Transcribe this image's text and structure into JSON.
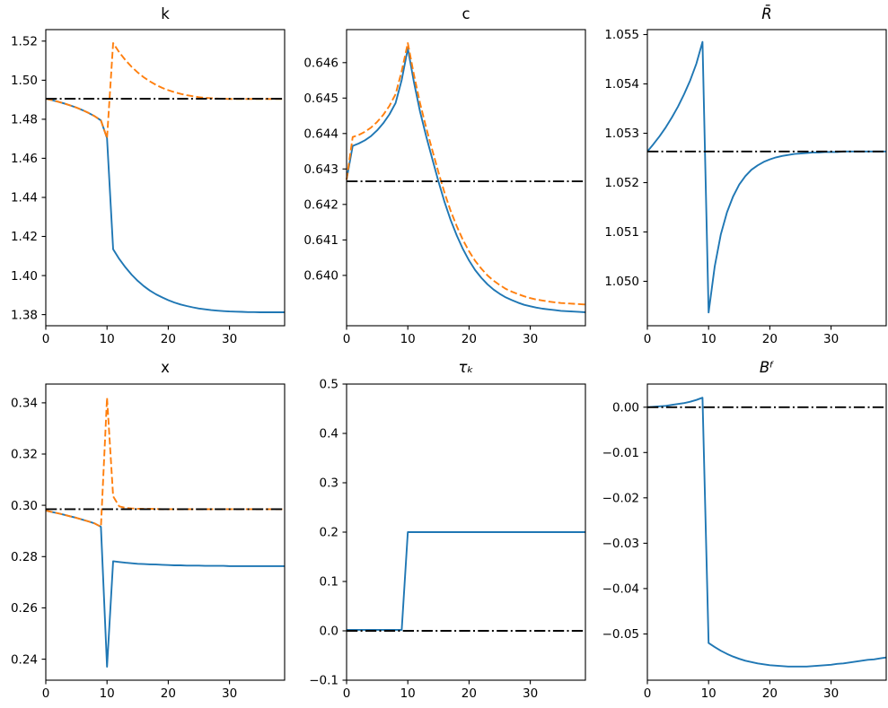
{
  "figure": {
    "background": "#ffffff",
    "grid": "2 rows x 3 columns",
    "legend": null
  },
  "chart_data": {
    "type": "line",
    "x": [
      0,
      1,
      2,
      3,
      4,
      5,
      6,
      7,
      8,
      9,
      10,
      11,
      12,
      13,
      14,
      15,
      16,
      17,
      18,
      19,
      20,
      21,
      22,
      23,
      24,
      25,
      26,
      27,
      28,
      29,
      30,
      31,
      32,
      33,
      34,
      35,
      36,
      37,
      38,
      39
    ],
    "xlim": [
      0,
      39
    ],
    "xticks": {
      "values": [
        0,
        10,
        20,
        30
      ],
      "labels": [
        "0",
        "10",
        "20",
        "30"
      ]
    },
    "colors": {
      "line1": "#1f77b4",
      "line2": "#ff7f0e",
      "steady_state": "#000000"
    },
    "subplots": [
      {
        "title": "k",
        "title_style": "normal",
        "ylim": [
          1.3743,
          1.5259
        ],
        "yticks": {
          "values": [
            1.38,
            1.4,
            1.42,
            1.44,
            1.46,
            1.48,
            1.5,
            1.52
          ],
          "labels": [
            "1.38",
            "1.40",
            "1.42",
            "1.44",
            "1.46",
            "1.48",
            "1.50",
            "1.52"
          ]
        },
        "hline": 1.4905,
        "series": [
          {
            "name": "blue-solid",
            "color": "#1f77b4",
            "style": "solid",
            "y": [
              1.4905,
              1.4898,
              1.489,
              1.4881,
              1.4871,
              1.486,
              1.4847,
              1.4832,
              1.4815,
              1.4794,
              1.4703,
              1.4135,
              1.4085,
              1.4042,
              1.4005,
              1.3973,
              1.3946,
              1.3923,
              1.3904,
              1.3888,
              1.3874,
              1.3862,
              1.3852,
              1.3844,
              1.3837,
              1.3831,
              1.3827,
              1.3823,
              1.382,
              1.3818,
              1.3816,
              1.3815,
              1.3814,
              1.3813,
              1.3813,
              1.3812,
              1.3812,
              1.3812,
              1.3812,
              1.3812
            ]
          },
          {
            "name": "orange-dashed",
            "color": "#ff7f0e",
            "style": "dashed",
            "y": [
              1.4905,
              1.4898,
              1.489,
              1.4881,
              1.4871,
              1.486,
              1.4847,
              1.4832,
              1.4815,
              1.4794,
              1.4703,
              1.519,
              1.5143,
              1.5103,
              1.5069,
              1.504,
              1.5015,
              1.4994,
              1.4976,
              1.4961,
              1.4949,
              1.4939,
              1.493,
              1.4923,
              1.4918,
              1.4913,
              1.491,
              1.4908,
              1.4906,
              1.4905,
              1.4904,
              1.4904,
              1.4904,
              1.4904,
              1.4904,
              1.4904,
              1.4904,
              1.4904,
              1.4904,
              1.4904
            ]
          }
        ]
      },
      {
        "title": "c",
        "title_style": "normal",
        "ylim": [
          0.63858,
          0.64693
        ],
        "yticks": {
          "values": [
            0.64,
            0.641,
            0.642,
            0.643,
            0.644,
            0.645,
            0.646
          ],
          "labels": [
            "0.640",
            "0.641",
            "0.642",
            "0.643",
            "0.644",
            "0.645",
            "0.646"
          ]
        },
        "hline": 0.64265,
        "series": [
          {
            "name": "blue-solid",
            "color": "#1f77b4",
            "style": "solid",
            "y": [
              0.6427,
              0.64365,
              0.64372,
              0.64381,
              0.64393,
              0.64409,
              0.64429,
              0.64454,
              0.64486,
              0.64551,
              0.6464,
              0.64545,
              0.64462,
              0.64392,
              0.64328,
              0.64265,
              0.64207,
              0.64156,
              0.64112,
              0.64074,
              0.64042,
              0.64015,
              0.63993,
              0.63975,
              0.6396,
              0.63948,
              0.63938,
              0.6393,
              0.63923,
              0.63917,
              0.63913,
              0.63909,
              0.63906,
              0.63904,
              0.63902,
              0.639,
              0.63899,
              0.63898,
              0.63897,
              0.63896
            ]
          },
          {
            "name": "orange-dashed",
            "color": "#ff7f0e",
            "style": "dashed",
            "y": [
              0.6427,
              0.6439,
              0.64396,
              0.64405,
              0.64417,
              0.64433,
              0.64453,
              0.64478,
              0.64511,
              0.64576,
              0.64655,
              0.64566,
              0.64486,
              0.64416,
              0.64353,
              0.64291,
              0.64233,
              0.64182,
              0.64138,
              0.641,
              0.64068,
              0.64041,
              0.64019,
              0.64,
              0.63985,
              0.63973,
              0.63962,
              0.63954,
              0.63947,
              0.63941,
              0.63936,
              0.63932,
              0.63929,
              0.63926,
              0.63924,
              0.63922,
              0.63921,
              0.6392,
              0.63919,
              0.63918
            ]
          }
        ]
      },
      {
        "title": "R̄",
        "title_style": "italic",
        "ylim": [
          1.0491,
          1.0551
        ],
        "yticks": {
          "values": [
            1.05,
            1.051,
            1.052,
            1.053,
            1.054,
            1.055
          ],
          "labels": [
            "1.050",
            "1.051",
            "1.052",
            "1.053",
            "1.054",
            "1.055"
          ]
        },
        "hline": 1.05263,
        "series": [
          {
            "name": "blue-solid",
            "color": "#1f77b4",
            "style": "solid",
            "y": [
              1.05263,
              1.05278,
              1.05294,
              1.05312,
              1.05332,
              1.05354,
              1.05379,
              1.05407,
              1.05441,
              1.05485,
              1.04937,
              1.0503,
              1.05095,
              1.0514,
              1.05172,
              1.05196,
              1.05213,
              1.05226,
              1.05235,
              1.05242,
              1.05247,
              1.05251,
              1.05254,
              1.05256,
              1.05258,
              1.05259,
              1.0526,
              1.05261,
              1.05261,
              1.05262,
              1.05262,
              1.05262,
              1.05263,
              1.05263,
              1.05263,
              1.05263,
              1.05263,
              1.05263,
              1.05263,
              1.05263
            ]
          }
        ]
      },
      {
        "title": "x",
        "title_style": "normal",
        "ylim": [
          0.2318,
          0.3473
        ],
        "yticks": {
          "values": [
            0.24,
            0.26,
            0.28,
            0.3,
            0.32,
            0.34
          ],
          "labels": [
            "0.24",
            "0.26",
            "0.28",
            "0.30",
            "0.32",
            "0.34"
          ]
        },
        "hline": 0.2985,
        "series": [
          {
            "name": "blue-solid",
            "color": "#1f77b4",
            "style": "solid",
            "y": [
              0.298,
              0.2974,
              0.2969,
              0.2963,
              0.2957,
              0.2951,
              0.2944,
              0.2937,
              0.2929,
              0.2916,
              0.237,
              0.2782,
              0.2779,
              0.2776,
              0.2774,
              0.2772,
              0.2771,
              0.277,
              0.2769,
              0.2768,
              0.2767,
              0.2766,
              0.2766,
              0.2765,
              0.2765,
              0.2765,
              0.2764,
              0.2764,
              0.2764,
              0.2764,
              0.2763,
              0.2763,
              0.2763,
              0.2763,
              0.2763,
              0.2763,
              0.2763,
              0.2763,
              0.2763,
              0.2763
            ]
          },
          {
            "name": "orange-dashed",
            "color": "#ff7f0e",
            "style": "dashed",
            "y": [
              0.298,
              0.2974,
              0.2969,
              0.2963,
              0.2957,
              0.2951,
              0.2944,
              0.2937,
              0.2929,
              0.2916,
              0.342,
              0.3035,
              0.2996,
              0.299,
              0.2988,
              0.2987,
              0.2986,
              0.2986,
              0.2986,
              0.2985,
              0.2985,
              0.2985,
              0.2985,
              0.2985,
              0.2985,
              0.2985,
              0.2985,
              0.2985,
              0.2985,
              0.2985,
              0.2985,
              0.2985,
              0.2985,
              0.2985,
              0.2985,
              0.2985,
              0.2985,
              0.2985,
              0.2985,
              0.2985
            ]
          }
        ]
      },
      {
        "title": "τₖ",
        "title_style": "italic",
        "ylim": [
          -0.1,
          0.5
        ],
        "yticks": {
          "values": [
            -0.1,
            0.0,
            0.1,
            0.2,
            0.3,
            0.4,
            0.5
          ],
          "labels": [
            "−0.1",
            "0.0",
            "0.1",
            "0.2",
            "0.3",
            "0.4",
            "0.5"
          ]
        },
        "hline": 0.0,
        "series": [
          {
            "name": "blue-solid",
            "color": "#1f77b4",
            "style": "solid",
            "y": [
              0.002,
              0.002,
              0.002,
              0.002,
              0.002,
              0.002,
              0.002,
              0.002,
              0.002,
              0.002,
              0.2,
              0.2,
              0.2,
              0.2,
              0.2,
              0.2,
              0.2,
              0.2,
              0.2,
              0.2,
              0.2,
              0.2,
              0.2,
              0.2,
              0.2,
              0.2,
              0.2,
              0.2,
              0.2,
              0.2,
              0.2,
              0.2,
              0.2,
              0.2,
              0.2,
              0.2,
              0.2,
              0.2,
              0.2,
              0.2
            ]
          }
        ]
      },
      {
        "title": "Bᶠ",
        "title_style": "italic",
        "ylim": [
          -0.0602,
          0.0051
        ],
        "yticks": {
          "values": [
            0.0,
            -0.01,
            -0.02,
            -0.03,
            -0.04,
            -0.05
          ],
          "labels": [
            "0.00",
            "−0.01",
            "−0.02",
            "−0.03",
            "−0.04",
            "−0.05"
          ]
        },
        "hline": 0.0,
        "series": [
          {
            "name": "blue-solid",
            "color": "#1f77b4",
            "style": "solid",
            "y": [
              0.0,
              0.0001,
              0.0002,
              0.0003,
              0.0005,
              0.0007,
              0.0009,
              0.0012,
              0.0016,
              0.0021,
              -0.052,
              -0.0529,
              -0.0537,
              -0.0544,
              -0.055,
              -0.0555,
              -0.0559,
              -0.0562,
              -0.0565,
              -0.0567,
              -0.0569,
              -0.057,
              -0.0571,
              -0.0572,
              -0.0572,
              -0.0572,
              -0.0572,
              -0.0571,
              -0.057,
              -0.0569,
              -0.0568,
              -0.0566,
              -0.0565,
              -0.0563,
              -0.0561,
              -0.0559,
              -0.0557,
              -0.0556,
              -0.0554,
              -0.0552
            ]
          }
        ]
      }
    ]
  }
}
